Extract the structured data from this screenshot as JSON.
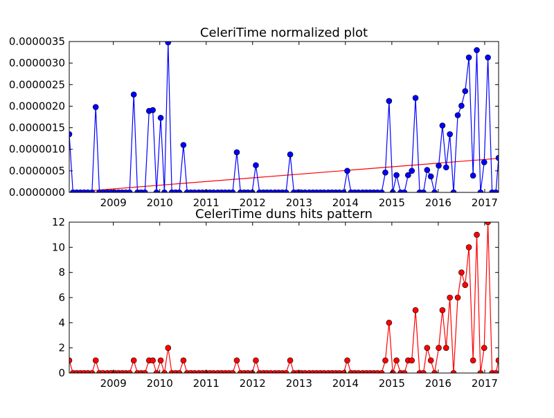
{
  "chart_data": [
    {
      "type": "line",
      "title": "CeleriTime normalized plot",
      "xlabel": "",
      "ylabel": "",
      "xlim": [
        2008.05,
        2017.3
      ],
      "ylim": [
        0,
        3.5e-06
      ],
      "x_ticks": [
        2009,
        2010,
        2011,
        2012,
        2013,
        2014,
        2015,
        2016,
        2017
      ],
      "x_tick_labels": [
        "2009",
        "2010",
        "2011",
        "2012",
        "2013",
        "2014",
        "2015",
        "2016",
        "2017"
      ],
      "y_ticks": [
        0,
        5e-07,
        1e-06,
        1.5e-06,
        2e-06,
        2.5e-06,
        3e-06,
        3.5e-06
      ],
      "y_tick_labels": [
        "0.0000000",
        "0.0000005",
        "0.0000010",
        "0.0000015",
        "0.0000020",
        "0.0000025",
        "0.0000030",
        "0.0000035"
      ],
      "colors": {
        "series": "#0000ff",
        "trend": "#ff0000",
        "axes": "#000000"
      },
      "series": [
        {
          "values": [
            [
              2008.05,
              1.35e-06
            ],
            [
              2008.13,
              0
            ],
            [
              2008.21,
              0
            ],
            [
              2008.29,
              0
            ],
            [
              2008.37,
              0
            ],
            [
              2008.45,
              0
            ],
            [
              2008.54,
              0
            ],
            [
              2008.62,
              1.98e-06
            ],
            [
              2008.7,
              0
            ],
            [
              2008.78,
              0
            ],
            [
              2008.87,
              0
            ],
            [
              2008.95,
              0
            ],
            [
              2009.03,
              0
            ],
            [
              2009.11,
              0
            ],
            [
              2009.19,
              0
            ],
            [
              2009.27,
              0
            ],
            [
              2009.35,
              0
            ],
            [
              2009.44,
              2.27e-06
            ],
            [
              2009.52,
              0
            ],
            [
              2009.6,
              0
            ],
            [
              2009.68,
              0
            ],
            [
              2009.77,
              1.89e-06
            ],
            [
              2009.85,
              1.91e-06
            ],
            [
              2009.93,
              0
            ],
            [
              2010.02,
              1.73e-06
            ],
            [
              2010.1,
              0
            ],
            [
              2010.18,
              3.48e-06
            ],
            [
              2010.26,
              0
            ],
            [
              2010.34,
              0
            ],
            [
              2010.42,
              0
            ],
            [
              2010.51,
              1.1e-06
            ],
            [
              2010.59,
              0
            ],
            [
              2010.67,
              0
            ],
            [
              2010.75,
              0
            ],
            [
              2010.84,
              0
            ],
            [
              2010.92,
              0
            ],
            [
              2011.0,
              0
            ],
            [
              2011.08,
              0
            ],
            [
              2011.16,
              0
            ],
            [
              2011.25,
              0
            ],
            [
              2011.33,
              0
            ],
            [
              2011.41,
              0
            ],
            [
              2011.49,
              0
            ],
            [
              2011.57,
              0
            ],
            [
              2011.66,
              9.3e-07
            ],
            [
              2011.74,
              0
            ],
            [
              2011.82,
              0
            ],
            [
              2011.9,
              0
            ],
            [
              2011.99,
              0
            ],
            [
              2012.07,
              6.3e-07
            ],
            [
              2012.15,
              0
            ],
            [
              2012.23,
              0
            ],
            [
              2012.31,
              0
            ],
            [
              2012.39,
              0
            ],
            [
              2012.48,
              0
            ],
            [
              2012.56,
              0
            ],
            [
              2012.64,
              0
            ],
            [
              2012.72,
              0
            ],
            [
              2012.81,
              8.8e-07
            ],
            [
              2012.89,
              0
            ],
            [
              2012.97,
              0
            ],
            [
              2013.05,
              0
            ],
            [
              2013.13,
              0
            ],
            [
              2013.22,
              0
            ],
            [
              2013.3,
              0
            ],
            [
              2013.38,
              0
            ],
            [
              2013.46,
              0
            ],
            [
              2013.54,
              0
            ],
            [
              2013.63,
              0
            ],
            [
              2013.71,
              0
            ],
            [
              2013.79,
              0
            ],
            [
              2013.87,
              0
            ],
            [
              2013.96,
              0
            ],
            [
              2014.04,
              5e-07
            ],
            [
              2014.12,
              0
            ],
            [
              2014.2,
              0
            ],
            [
              2014.28,
              0
            ],
            [
              2014.37,
              0
            ],
            [
              2014.45,
              0
            ],
            [
              2014.53,
              0
            ],
            [
              2014.61,
              0
            ],
            [
              2014.69,
              0
            ],
            [
              2014.78,
              0
            ],
            [
              2014.86,
              4.6e-07
            ],
            [
              2014.94,
              2.12e-06
            ],
            [
              2015.02,
              0
            ],
            [
              2015.1,
              4e-07
            ],
            [
              2015.19,
              0
            ],
            [
              2015.27,
              0
            ],
            [
              2015.35,
              4e-07
            ],
            [
              2015.43,
              5e-07
            ],
            [
              2015.51,
              2.19e-06
            ],
            [
              2015.6,
              0
            ],
            [
              2015.68,
              0
            ],
            [
              2015.76,
              5.2e-07
            ],
            [
              2015.84,
              3.7e-07
            ],
            [
              2015.92,
              0
            ],
            [
              2016.01,
              6.2e-07
            ],
            [
              2016.09,
              1.55e-06
            ],
            [
              2016.17,
              5.8e-07
            ],
            [
              2016.25,
              1.35e-06
            ],
            [
              2016.33,
              0
            ],
            [
              2016.42,
              1.79e-06
            ],
            [
              2016.5,
              2.01e-06
            ],
            [
              2016.58,
              2.35e-06
            ],
            [
              2016.66,
              3.13e-06
            ],
            [
              2016.75,
              3.9e-07
            ],
            [
              2016.83,
              3.3e-06
            ],
            [
              2016.91,
              0
            ],
            [
              2016.99,
              7e-07
            ],
            [
              2017.07,
              3.13e-06
            ],
            [
              2017.16,
              0
            ],
            [
              2017.24,
              0
            ],
            [
              2017.3,
              8e-07
            ]
          ]
        }
      ],
      "trend_line": [
        [
          2008.05,
          0
        ],
        [
          2017.3,
          7.9e-07
        ]
      ]
    },
    {
      "type": "line",
      "title": "CeleriTime duns hits pattern",
      "xlabel": "",
      "ylabel": "",
      "xlim": [
        2008.05,
        2017.3
      ],
      "ylim": [
        0,
        12
      ],
      "x_ticks": [
        2009,
        2010,
        2011,
        2012,
        2013,
        2014,
        2015,
        2016,
        2017
      ],
      "x_tick_labels": [
        "2009",
        "2010",
        "2011",
        "2012",
        "2013",
        "2014",
        "2015",
        "2016",
        "2017"
      ],
      "y_ticks": [
        0,
        2,
        4,
        6,
        8,
        10,
        12
      ],
      "y_tick_labels": [
        "0",
        "2",
        "4",
        "6",
        "8",
        "10",
        "12"
      ],
      "colors": {
        "series": "#ff0000",
        "axes": "#000000"
      },
      "series": [
        {
          "values": [
            [
              2008.05,
              1
            ],
            [
              2008.13,
              0
            ],
            [
              2008.21,
              0
            ],
            [
              2008.29,
              0
            ],
            [
              2008.37,
              0
            ],
            [
              2008.45,
              0
            ],
            [
              2008.54,
              0
            ],
            [
              2008.62,
              1
            ],
            [
              2008.7,
              0
            ],
            [
              2008.78,
              0
            ],
            [
              2008.87,
              0
            ],
            [
              2008.95,
              0
            ],
            [
              2009.03,
              0
            ],
            [
              2009.11,
              0
            ],
            [
              2009.19,
              0
            ],
            [
              2009.27,
              0
            ],
            [
              2009.35,
              0
            ],
            [
              2009.44,
              1
            ],
            [
              2009.52,
              0
            ],
            [
              2009.6,
              0
            ],
            [
              2009.68,
              0
            ],
            [
              2009.77,
              1
            ],
            [
              2009.85,
              1
            ],
            [
              2009.93,
              0
            ],
            [
              2010.02,
              1
            ],
            [
              2010.1,
              0
            ],
            [
              2010.18,
              2
            ],
            [
              2010.26,
              0
            ],
            [
              2010.34,
              0
            ],
            [
              2010.42,
              0
            ],
            [
              2010.51,
              1
            ],
            [
              2010.59,
              0
            ],
            [
              2010.67,
              0
            ],
            [
              2010.75,
              0
            ],
            [
              2010.84,
              0
            ],
            [
              2010.92,
              0
            ],
            [
              2011.0,
              0
            ],
            [
              2011.08,
              0
            ],
            [
              2011.16,
              0
            ],
            [
              2011.25,
              0
            ],
            [
              2011.33,
              0
            ],
            [
              2011.41,
              0
            ],
            [
              2011.49,
              0
            ],
            [
              2011.57,
              0
            ],
            [
              2011.66,
              1
            ],
            [
              2011.74,
              0
            ],
            [
              2011.82,
              0
            ],
            [
              2011.9,
              0
            ],
            [
              2011.99,
              0
            ],
            [
              2012.07,
              1
            ],
            [
              2012.15,
              0
            ],
            [
              2012.23,
              0
            ],
            [
              2012.31,
              0
            ],
            [
              2012.39,
              0
            ],
            [
              2012.48,
              0
            ],
            [
              2012.56,
              0
            ],
            [
              2012.64,
              0
            ],
            [
              2012.72,
              0
            ],
            [
              2012.81,
              1
            ],
            [
              2012.89,
              0
            ],
            [
              2012.97,
              0
            ],
            [
              2013.05,
              0
            ],
            [
              2013.13,
              0
            ],
            [
              2013.22,
              0
            ],
            [
              2013.3,
              0
            ],
            [
              2013.38,
              0
            ],
            [
              2013.46,
              0
            ],
            [
              2013.54,
              0
            ],
            [
              2013.63,
              0
            ],
            [
              2013.71,
              0
            ],
            [
              2013.79,
              0
            ],
            [
              2013.87,
              0
            ],
            [
              2013.96,
              0
            ],
            [
              2014.04,
              1
            ],
            [
              2014.12,
              0
            ],
            [
              2014.2,
              0
            ],
            [
              2014.28,
              0
            ],
            [
              2014.37,
              0
            ],
            [
              2014.45,
              0
            ],
            [
              2014.53,
              0
            ],
            [
              2014.61,
              0
            ],
            [
              2014.69,
              0
            ],
            [
              2014.78,
              0
            ],
            [
              2014.86,
              1
            ],
            [
              2014.94,
              4
            ],
            [
              2015.02,
              0
            ],
            [
              2015.1,
              1
            ],
            [
              2015.19,
              0
            ],
            [
              2015.27,
              0
            ],
            [
              2015.35,
              1
            ],
            [
              2015.43,
              1
            ],
            [
              2015.51,
              5
            ],
            [
              2015.6,
              0
            ],
            [
              2015.68,
              0
            ],
            [
              2015.76,
              2
            ],
            [
              2015.84,
              1
            ],
            [
              2015.92,
              0
            ],
            [
              2016.01,
              2
            ],
            [
              2016.09,
              5
            ],
            [
              2016.17,
              2
            ],
            [
              2016.25,
              6
            ],
            [
              2016.33,
              0
            ],
            [
              2016.42,
              6
            ],
            [
              2016.5,
              8
            ],
            [
              2016.58,
              7
            ],
            [
              2016.66,
              10
            ],
            [
              2016.75,
              1
            ],
            [
              2016.83,
              11
            ],
            [
              2016.91,
              0
            ],
            [
              2016.99,
              2
            ],
            [
              2017.07,
              12
            ],
            [
              2017.16,
              0
            ],
            [
              2017.24,
              0
            ],
            [
              2017.3,
              1
            ]
          ]
        }
      ]
    }
  ]
}
